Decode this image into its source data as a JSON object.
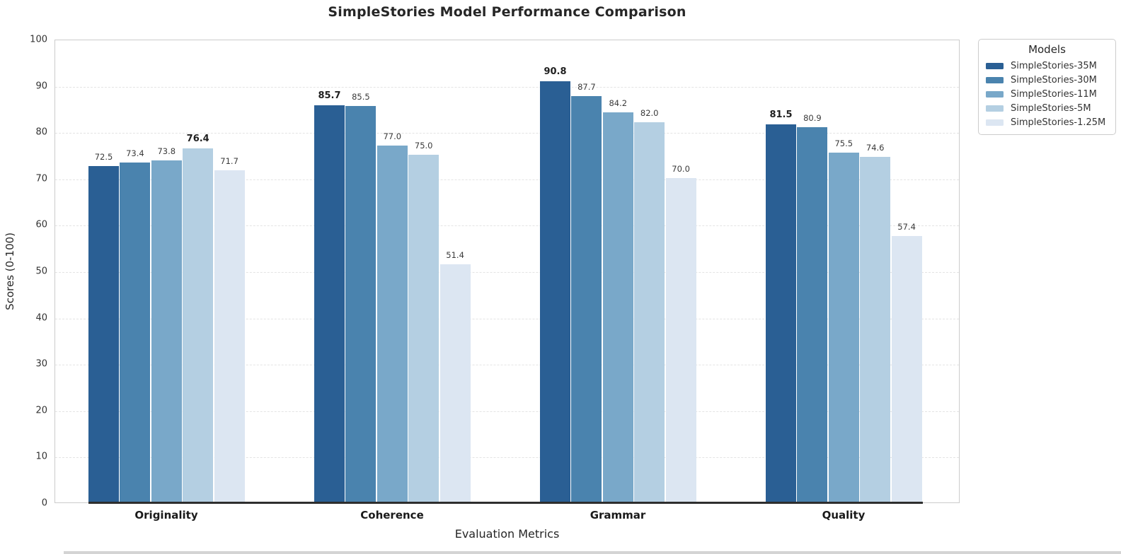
{
  "chart_data": {
    "type": "bar",
    "title": "SimpleStories Model Performance Comparison",
    "xlabel": "Evaluation Metrics",
    "ylabel": "Scores (0-100)",
    "ylim": [
      0,
      100
    ],
    "ytick_step": 10,
    "grid": "horizontal dashed",
    "legend_title": "Models",
    "legend_position": "outside upper right",
    "categories": [
      "Originality",
      "Coherence",
      "Grammar",
      "Quality"
    ],
    "series": [
      {
        "name": "SimpleStories-35M",
        "color": "#2a5f94",
        "values": [
          72.5,
          85.7,
          90.8,
          81.5
        ]
      },
      {
        "name": "SimpleStories-30M",
        "color": "#4a83ae",
        "values": [
          73.4,
          85.5,
          87.7,
          80.9
        ]
      },
      {
        "name": "SimpleStories-11M",
        "color": "#79a8c9",
        "values": [
          73.8,
          77.0,
          84.2,
          75.5
        ]
      },
      {
        "name": "SimpleStories-5M",
        "color": "#b4cfe2",
        "values": [
          76.4,
          75.0,
          82.0,
          74.6
        ]
      },
      {
        "name": "SimpleStories-1.25M",
        "color": "#dce6f2",
        "values": [
          71.7,
          51.4,
          70.0,
          57.4
        ]
      }
    ],
    "value_label_format": "one decimal place above each bar",
    "max_value_per_category_bold": true,
    "colors": {
      "plot_border": "#cccccc",
      "gridline": "#e4e4e4",
      "baseline": "#2e2e2e",
      "tick_text": "#333333",
      "title_text": "#262626"
    }
  }
}
